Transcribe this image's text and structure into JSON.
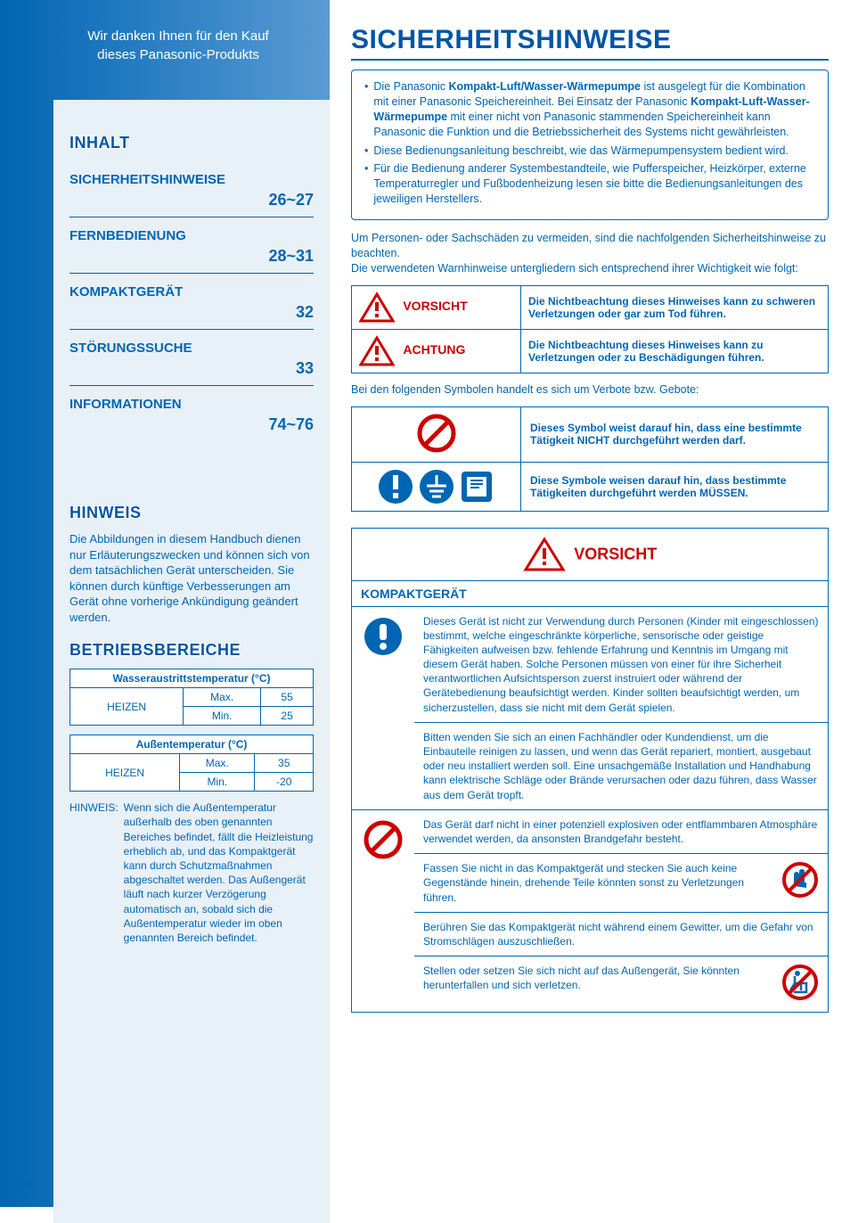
{
  "colors": {
    "brand": "#0066b3",
    "brand_dark": "#0055a5",
    "danger": "#cc0000",
    "sidebar_bg": "#e8f0f8",
    "white": "#ffffff"
  },
  "sidebar": {
    "thanks_l1": "Wir danken Ihnen für den Kauf",
    "thanks_l2": "dieses Panasonic-Produkts",
    "inhalt_title": "INHALT",
    "toc": [
      {
        "label": "SICHERHEITSHINWEISE",
        "page": "26~27"
      },
      {
        "label": "FERNBEDIENUNG",
        "page": "28~31"
      },
      {
        "label": "KOMPAKTGERÄT",
        "page": "32"
      },
      {
        "label": "STÖRUNGSSUCHE",
        "page": "33"
      },
      {
        "label": "INFORMATIONEN",
        "page": "74~76"
      }
    ],
    "hinweis_title": "HINWEIS",
    "hinweis_text": "Die Abbildungen in diesem Handbuch dienen nur Erläuterungszwecken und können sich von dem tatsächlichen Gerät unterscheiden. Sie können durch künftige Verbesserungen am Gerät ohne vorherige Ankündigung geändert werden.",
    "betrieb_title": "BETRIEBSBEREICHE",
    "water_table": {
      "header": "Wasseraustrittstemperatur (°C)",
      "rowlabel": "HEIZEN",
      "max_label": "Max.",
      "max_val": "55",
      "min_label": "Min.",
      "min_val": "25"
    },
    "air_table": {
      "header": "Außentemperatur (°C)",
      "rowlabel": "HEIZEN",
      "max_label": "Max.",
      "max_val": "35",
      "min_label": "Min.",
      "min_val": "-20"
    },
    "note_label": "HINWEIS:",
    "note_body": "Wenn sich die Außentemperatur außerhalb des oben genannten Bereiches befindet, fällt die Heizleistung erheblich ab, und das Kompaktgerät kann durch Schutzmaßnahmen abgeschaltet werden. Das Außengerät läuft nach kurzer Verzögerung automatisch an, sobald sich die Außentemperatur wieder im oben genannten Bereich befindet.",
    "pagenum": "26"
  },
  "main": {
    "title": "SICHERHEITSHINWEISE",
    "intro": [
      "Die Panasonic <b>Kompakt-Luft/Wasser-Wärmepumpe</b> ist ausgelegt für die Kombination mit einer Panasonic Speichereinheit. Bei Einsatz der Panasonic <b>Kompakt-Luft-Wasser-Wärmepumpe</b> mit einer nicht von Panasonic stammenden Speichereinheit kann Panasonic die Funktion und die Betriebssicherheit des Systems nicht gewährleisten.",
      "Diese Bedienungsanleitung beschreibt, wie das Wärmepumpensystem bedient wird.",
      "Für die Bedienung anderer Systembestandteile, wie Pufferspeicher, Heizkörper, externe Temperaturregler und Fußbodenheizung lesen sie bitte die Bedienungsanleitungen des jeweiligen Herstellers."
    ],
    "para1": "Um Personen- oder Sachschäden zu vermeiden, sind die nachfolgenden Sicherheitshinweise zu beachten.",
    "para2": "Die verwendeten Warnhinweise untergliedern sich entsprechend ihrer Wichtigkeit wie folgt:",
    "warn": [
      {
        "label": "VORSICHT",
        "desc": "Die Nichtbeachtung dieses Hinweises kann zu schweren Verletzungen oder gar zum Tod führen."
      },
      {
        "label": "ACHTUNG",
        "desc": "Die Nichtbeachtung dieses Hinweises kann zu Verletzungen oder zu Beschädigungen führen."
      }
    ],
    "sym_intro": "Bei den folgenden Symbolen handelt es sich um Verbote bzw. Gebote:",
    "sym": [
      {
        "type": "prohibit",
        "text": "Dieses Symbol weist darauf hin, dass eine bestimmte Tätigkeit NICHT durchgeführt werden darf."
      },
      {
        "type": "mandatory",
        "text": "Diese Symbole weisen darauf hin, dass bestimmte Tätigkeiten durchgeführt werden MÜSSEN."
      }
    ],
    "vorsicht_big": "VORSICHT",
    "section_sub": "KOMPAKTGERÄT",
    "mandatory_items": [
      "Dieses Gerät ist nicht zur Verwendung durch Personen (Kinder mit eingeschlossen) bestimmt, welche eingeschränkte körperliche, sensorische oder geistige Fähigkeiten aufweisen bzw. fehlende Erfahrung und Kenntnis im Umgang mit diesem Gerät haben. Solche Personen müssen von einer für ihre Sicherheit verantwortlichen Aufsichtsperson zuerst instruiert oder während der Gerätebedienung beaufsichtigt werden.\nKinder sollten beaufsichtigt werden, um sicherzustellen, dass sie nicht mit dem Gerät spielen.",
      "Bitten wenden Sie sich an einen Fachhändler oder Kundendienst, um die Einbauteile reinigen zu lassen, und wenn das Gerät repariert, montiert, ausgebaut oder neu installiert werden soll. Eine unsachgemäße Installation und Handhabung kann elektrische Schläge oder Brände verursachen oder dazu führen, dass Wasser aus dem Gerät tropft."
    ],
    "prohibit_items": [
      {
        "text": "Das Gerät darf nicht in einer potenziell explosiven oder entflammbaren Atmosphäre verwendet werden, da ansonsten Brandgefahr besteht.",
        "icon": null
      },
      {
        "text": "Fassen Sie nicht in das Kompaktgerät und stecken Sie auch keine Gegenstände hinein, drehende Teile könnten sonst zu Verletzungen führen.",
        "icon": "hand"
      },
      {
        "text": "Berühren Sie das Kompaktgerät nicht während einem Gewitter, um die Gefahr von Stromschlägen auszuschließen.",
        "icon": null
      },
      {
        "text": "Stellen oder setzen Sie sich nicht auf das Außengerät, Sie könnten herunterfallen und sich verletzen.",
        "icon": "sit"
      }
    ]
  }
}
